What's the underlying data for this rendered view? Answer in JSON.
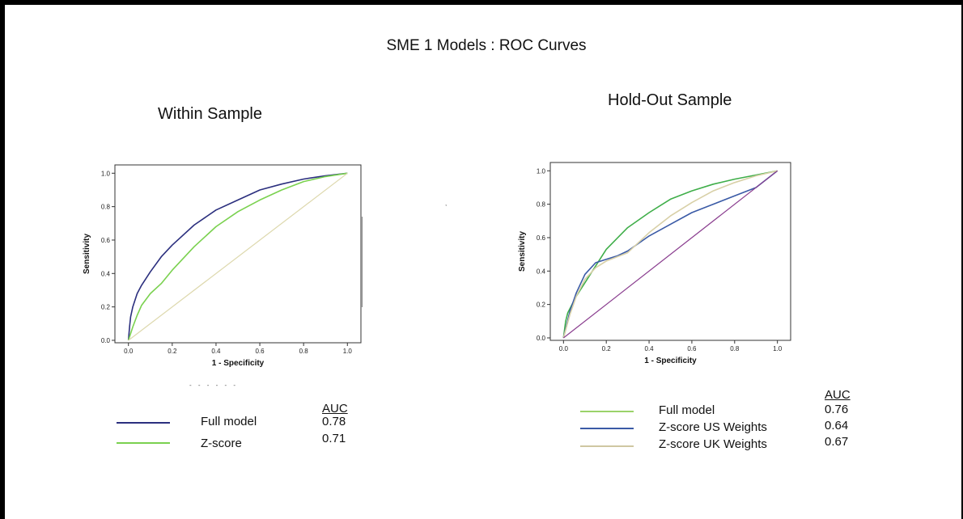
{
  "slide": {
    "title": "SME 1  Models : ROC Curves",
    "within_title": "Within Sample",
    "holdout_title": "Hold-Out  Sample",
    "stray_comma": ","
  },
  "chart_data": [
    {
      "type": "line",
      "title": "Within Sample",
      "xlabel": "1 - Specificity",
      "ylabel": "Sensitivity",
      "xlim": [
        0,
        1
      ],
      "ylim": [
        0,
        1
      ],
      "xticks": [
        "0.0",
        "0.2",
        "0.4",
        "0.6",
        "0.8",
        "1.0"
      ],
      "yticks": [
        "0.0",
        "0.2",
        "0.4",
        "0.6",
        "0.8",
        "1.0"
      ],
      "grid": false,
      "series": [
        {
          "name": "Full model",
          "color": "#2b2f7e",
          "x": [
            0,
            0.005,
            0.01,
            0.02,
            0.04,
            0.06,
            0.1,
            0.15,
            0.2,
            0.3,
            0.4,
            0.5,
            0.6,
            0.7,
            0.8,
            0.9,
            1.0
          ],
          "y": [
            0,
            0.08,
            0.14,
            0.2,
            0.28,
            0.33,
            0.41,
            0.5,
            0.57,
            0.69,
            0.78,
            0.84,
            0.9,
            0.935,
            0.965,
            0.985,
            1.0
          ]
        },
        {
          "name": "Z-score",
          "color": "#7ad14f",
          "x": [
            0,
            0.02,
            0.04,
            0.06,
            0.1,
            0.15,
            0.2,
            0.3,
            0.4,
            0.5,
            0.6,
            0.7,
            0.8,
            0.9,
            1.0
          ],
          "y": [
            0,
            0.08,
            0.15,
            0.21,
            0.28,
            0.34,
            0.42,
            0.56,
            0.68,
            0.77,
            0.84,
            0.9,
            0.95,
            0.98,
            1.0
          ]
        },
        {
          "name": "",
          "color": "#ddd8ad",
          "x": [
            0,
            1
          ],
          "y": [
            0,
            1
          ]
        }
      ],
      "legend": {
        "auc_header": "AUC",
        "entries": [
          {
            "label": "Full model",
            "auc": "0.78",
            "color": "#2b2f7e"
          },
          {
            "label": "Z-score",
            "auc": "0.71",
            "color": "#7ad14f"
          }
        ]
      }
    },
    {
      "type": "line",
      "title": "Hold-Out  Sample",
      "xlabel": "1 - Specificity",
      "ylabel": "Sensitivity",
      "xlim": [
        0,
        1
      ],
      "ylim": [
        0,
        1
      ],
      "xticks": [
        "0.0",
        "0.2",
        "0.4",
        "0.6",
        "0.8",
        "1.0"
      ],
      "yticks": [
        "0.0",
        "0.2",
        "0.4",
        "0.6",
        "0.8",
        "1.0"
      ],
      "grid": false,
      "series": [
        {
          "name": "Full model",
          "color": "#3fae49",
          "x": [
            0,
            0.01,
            0.02,
            0.04,
            0.06,
            0.1,
            0.15,
            0.2,
            0.3,
            0.4,
            0.5,
            0.6,
            0.7,
            0.8,
            0.9,
            1.0
          ],
          "y": [
            0,
            0.1,
            0.15,
            0.2,
            0.25,
            0.33,
            0.43,
            0.53,
            0.66,
            0.75,
            0.83,
            0.88,
            0.92,
            0.95,
            0.975,
            1.0
          ]
        },
        {
          "name": "Z-score US Weights",
          "color": "#3a5aa6",
          "x": [
            0,
            0.03,
            0.06,
            0.1,
            0.15,
            0.2,
            0.25,
            0.3,
            0.4,
            0.5,
            0.6,
            0.7,
            0.8,
            0.9,
            1.0
          ],
          "y": [
            0,
            0.16,
            0.27,
            0.38,
            0.45,
            0.47,
            0.49,
            0.52,
            0.61,
            0.68,
            0.75,
            0.8,
            0.85,
            0.9,
            1.0
          ]
        },
        {
          "name": "Z-score UK Weights",
          "color": "#d8d0a7",
          "x": [
            0,
            0.03,
            0.06,
            0.1,
            0.15,
            0.2,
            0.3,
            0.4,
            0.5,
            0.6,
            0.7,
            0.8,
            0.9,
            1.0
          ],
          "y": [
            0,
            0.14,
            0.25,
            0.35,
            0.42,
            0.46,
            0.51,
            0.63,
            0.73,
            0.81,
            0.88,
            0.93,
            0.97,
            1.0
          ]
        },
        {
          "name": "",
          "color": "#8a3e8f",
          "x": [
            0,
            1
          ],
          "y": [
            0,
            1
          ]
        }
      ],
      "legend": {
        "auc_header": "AUC",
        "entries": [
          {
            "label": "Full model",
            "auc": "0.76",
            "color": "#9bd36a"
          },
          {
            "label": "Z-score US Weights",
            "auc": "0.64",
            "color": "#3a5aa6"
          },
          {
            "label": "Z-score UK Weights",
            "auc": "0.67",
            "color": "#cfc7a2"
          }
        ]
      }
    }
  ]
}
